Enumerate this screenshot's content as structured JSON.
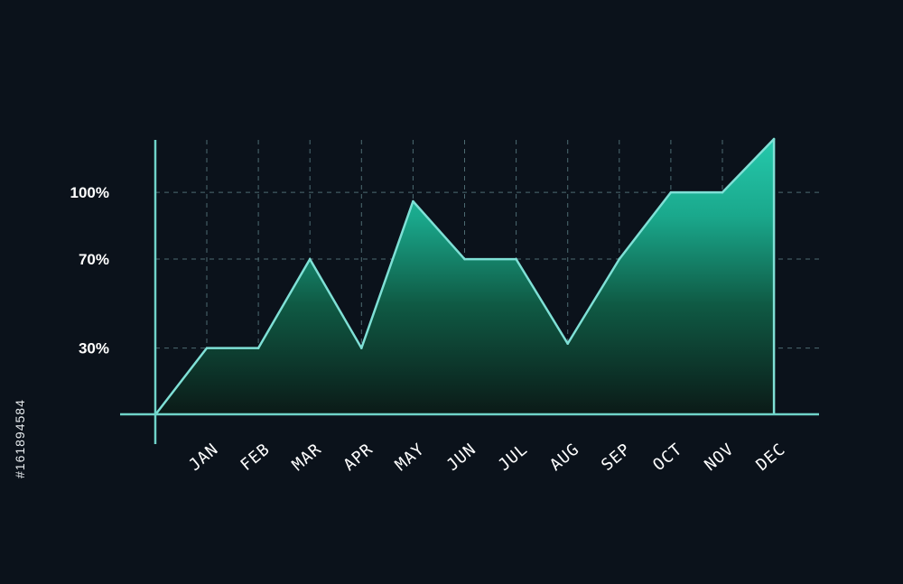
{
  "chart_data": {
    "type": "area",
    "title": "",
    "xlabel": "",
    "ylabel": "",
    "categories": [
      "JAN",
      "FEB",
      "MAR",
      "APR",
      "MAY",
      "JUN",
      "JUL",
      "AUG",
      "SEP",
      "OCT",
      "NOV",
      "DEC"
    ],
    "series": [
      {
        "values": [
          30,
          30,
          70,
          30,
          96,
          70,
          70,
          32,
          70,
          100,
          100,
          124
        ]
      }
    ],
    "y_ticks": [
      {
        "value": 30,
        "label": "30%"
      },
      {
        "value": 70,
        "label": "70%"
      },
      {
        "value": 100,
        "label": "100%"
      }
    ],
    "ylim": [
      -1,
      124
    ],
    "origin_value": 0,
    "grid": true,
    "colors": {
      "background": "#0b121b",
      "axis": "#6fd3c9",
      "line": "#7fe0d6",
      "grid": "#4d6b72",
      "fill_top": "#25c9ac",
      "fill_bottom": "#0b1a17"
    }
  },
  "side_label": "#161894584"
}
